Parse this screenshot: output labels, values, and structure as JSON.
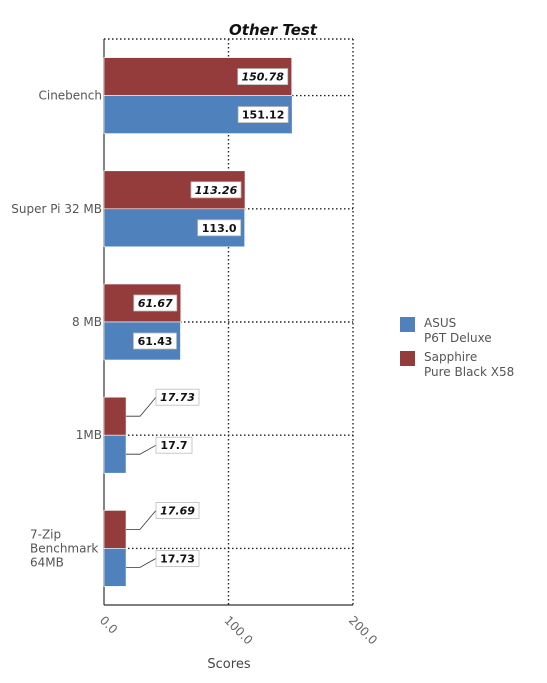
{
  "chart_data": {
    "type": "bar",
    "orientation": "horizontal",
    "title": "Other Test",
    "xlabel": "Scores",
    "ylabel": "",
    "xlim": [
      0,
      200
    ],
    "x_ticks": [
      "0.0",
      "100.0",
      "200.0"
    ],
    "grid": true,
    "legend_position": "right",
    "categories": [
      "Cinebench",
      "Super Pi 32 MB",
      "8 MB",
      "1MB",
      "7-Zip Benchmark 64MB"
    ],
    "category_lines": [
      [
        "Cinebench"
      ],
      [
        "Super Pi 32 MB"
      ],
      [
        "8 MB"
      ],
      [
        "1MB"
      ],
      [
        "7-Zip",
        "Benchmark",
        "64MB"
      ]
    ],
    "series": [
      {
        "name": "ASUS P6T Deluxe",
        "legend_lines": [
          "ASUS",
          "P6T Deluxe"
        ],
        "color": "#4f81bd",
        "values": [
          151.12,
          113.0,
          61.43,
          17.7,
          17.73
        ],
        "labels": [
          "151.12",
          "113.0",
          "61.43",
          "17.7",
          "17.73"
        ]
      },
      {
        "name": "Sapphire Pure Black X58",
        "legend_lines": [
          "Sapphire",
          "Pure Black X58"
        ],
        "color": "#943c3c",
        "values": [
          150.78,
          113.26,
          61.67,
          17.73,
          17.69
        ],
        "labels": [
          "150.78",
          "113.26",
          "61.67",
          "17.73",
          "17.69"
        ]
      }
    ]
  }
}
